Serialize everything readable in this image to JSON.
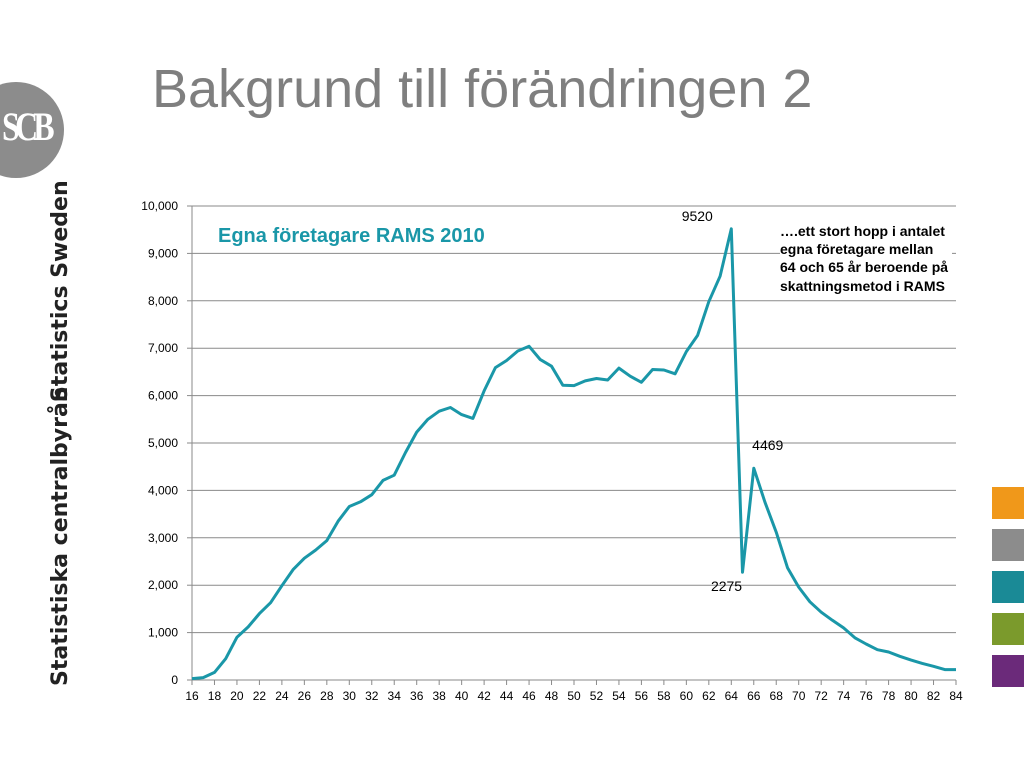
{
  "slide": {
    "title": "Bakgrund till förändringen 2",
    "logo_text": "SCB",
    "side_text_top": "Statistics Sweden",
    "side_text_bottom": "Statistiska centralbyrån",
    "swatches": [
      "#f0981a",
      "#8c8c8c",
      "#1a8a96",
      "#7b9a2c",
      "#6b2a7a"
    ]
  },
  "chart_data": {
    "type": "line",
    "title": "",
    "series": [
      {
        "name": "Egna företagare RAMS 2010",
        "color": "#1a97a8",
        "x": [
          16,
          17,
          18,
          19,
          20,
          21,
          22,
          23,
          24,
          25,
          26,
          27,
          28,
          29,
          30,
          31,
          32,
          33,
          34,
          35,
          36,
          37,
          38,
          39,
          40,
          41,
          42,
          43,
          44,
          45,
          46,
          47,
          48,
          49,
          50,
          51,
          52,
          53,
          54,
          55,
          56,
          57,
          58,
          59,
          60,
          61,
          62,
          63,
          64,
          65,
          66,
          67,
          68,
          69,
          70,
          71,
          72,
          73,
          74,
          75,
          76,
          77,
          78,
          79,
          80,
          81,
          82,
          83,
          84
        ],
        "values": [
          30,
          50,
          160,
          450,
          900,
          1120,
          1400,
          1630,
          1990,
          2330,
          2570,
          2740,
          2940,
          3350,
          3660,
          3760,
          3910,
          4210,
          4320,
          4800,
          5230,
          5500,
          5670,
          5750,
          5600,
          5520,
          6100,
          6590,
          6740,
          6940,
          7040,
          6760,
          6620,
          6220,
          6210,
          6310,
          6360,
          6330,
          6580,
          6410,
          6280,
          6550,
          6540,
          6460,
          6930,
          7270,
          7980,
          8520,
          9520,
          2275,
          4469,
          3750,
          3120,
          2370,
          1960,
          1650,
          1430,
          1260,
          1100,
          890,
          760,
          640,
          590,
          500,
          420,
          350,
          290,
          220,
          220
        ]
      }
    ],
    "xlim": [
      16,
      84
    ],
    "ylim": [
      0,
      10000
    ],
    "x_ticks": [
      "16",
      "18",
      "20",
      "22",
      "24",
      "26",
      "28",
      "30",
      "32",
      "34",
      "36",
      "38",
      "40",
      "42",
      "44",
      "46",
      "48",
      "50",
      "52",
      "54",
      "56",
      "58",
      "60",
      "62",
      "64",
      "66",
      "68",
      "70",
      "72",
      "74",
      "76",
      "78",
      "80",
      "82",
      "84"
    ],
    "y_ticks": [
      "0",
      "1,000",
      "2,000",
      "3,000",
      "4,000",
      "5,000",
      "6,000",
      "7,000",
      "8,000",
      "9,000",
      "10,000"
    ],
    "grid": true,
    "annotations": [
      {
        "text": "9520",
        "x": 64,
        "y": 9520
      },
      {
        "text": "2275",
        "x": 65,
        "y": 2275
      },
      {
        "text": "4469",
        "x": 66,
        "y": 4469
      }
    ],
    "note": "….ett stort hopp i antalet\negna företagare mellan 64 och 65 år beroende på skattningsmetod i RAMS"
  }
}
